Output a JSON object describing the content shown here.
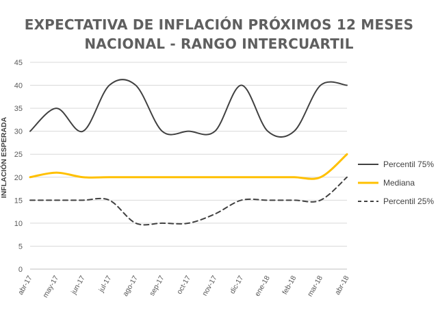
{
  "chart_data": {
    "type": "line",
    "title": "EXPECTATIVA DE INFLACIÓN PRÓXIMOS 12 MESES",
    "subtitle": "NACIONAL - RANGO INTERCUARTIL",
    "xlabel": "",
    "ylabel": "INFLACIÓN ESPERADA",
    "ylim": [
      0,
      45
    ],
    "yticks": [
      "0",
      "5",
      "10",
      "15",
      "20",
      "25",
      "30",
      "35",
      "40",
      "45"
    ],
    "categories": [
      "abr-17",
      "may-17",
      "jun-17",
      "jul-17",
      "ago-17",
      "sep-17",
      "oct-17",
      "nov-17",
      "dic-17",
      "ene-18",
      "feb-18",
      "mar-18",
      "abr-18"
    ],
    "grid": true,
    "legend_position": "right",
    "series": [
      {
        "name": "Percentil 75%",
        "color": "#404040",
        "style": "solid",
        "values": [
          30,
          35,
          30,
          40,
          40,
          30,
          30,
          30,
          40,
          30,
          30,
          40,
          40
        ]
      },
      {
        "name": "Mediana",
        "color": "#FFC000",
        "style": "solid",
        "values": [
          20,
          21,
          20,
          20,
          20,
          20,
          20,
          20,
          20,
          20,
          20,
          20,
          25
        ]
      },
      {
        "name": "Percentil 25%",
        "color": "#404040",
        "style": "dashed",
        "values": [
          15,
          15,
          15,
          15,
          10,
          10,
          10,
          12,
          15,
          15,
          15,
          15,
          20
        ]
      }
    ]
  }
}
